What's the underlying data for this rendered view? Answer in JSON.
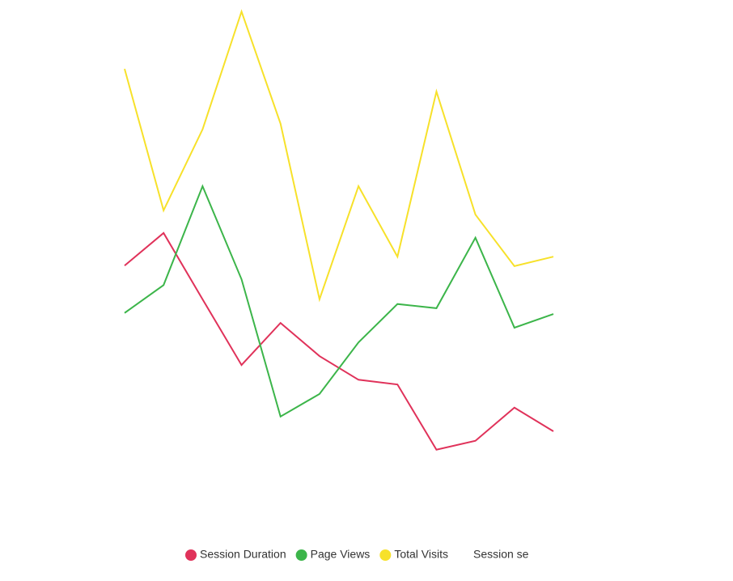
{
  "chart_data": {
    "type": "line",
    "categories": [
      null,
      null,
      null,
      null,
      null,
      null,
      null,
      null,
      null,
      null,
      null,
      null
    ],
    "ylim": [
      0,
      100
    ],
    "series": [
      {
        "name": "Session Duration",
        "color": "#e0325a",
        "values": [
          49.5,
          55.7,
          43.1,
          30.6,
          38.6,
          32.3,
          27.8,
          26.9,
          14.5,
          16.2,
          22.5,
          18.0
        ]
      },
      {
        "name": "Page Views",
        "color": "#3cb54a",
        "values": [
          40.5,
          45.8,
          64.6,
          46.9,
          20.8,
          25.1,
          34.9,
          42.2,
          41.4,
          54.8,
          37.7,
          40.3
        ]
      },
      {
        "name": "Total Visits",
        "color": "#f7e12a",
        "values": [
          86.9,
          60.0,
          75.4,
          97.8,
          76.5,
          43.1,
          64.6,
          51.2,
          82.6,
          59.2,
          49.4,
          51.2
        ]
      },
      {
        "name": "Session se",
        "values": [
          null,
          null,
          null,
          null,
          null,
          null,
          null,
          null,
          null,
          null,
          null,
          null
        ]
      }
    ]
  }
}
